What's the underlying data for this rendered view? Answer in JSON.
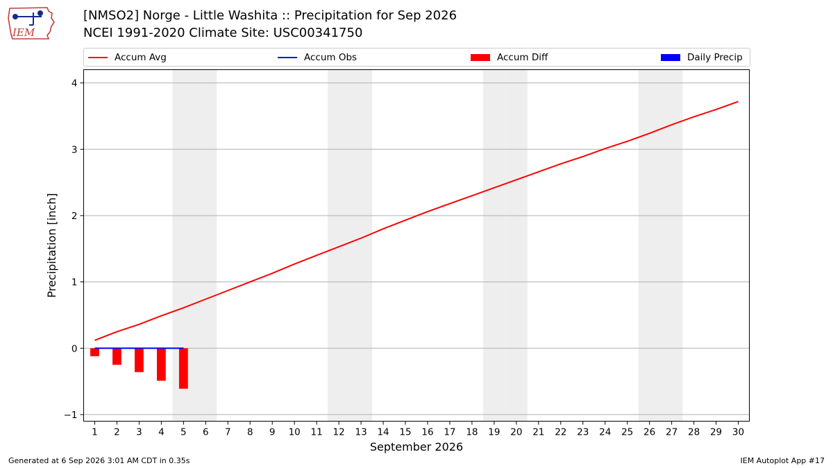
{
  "header": {
    "title": "[NMSO2] Norge - Little Washita :: Precipitation for Sep 2026",
    "subtitle": "NCEI 1991-2020 Climate Site: USC00341750",
    "logo_text": "IEM"
  },
  "legend": [
    {
      "label": "Accum Avg",
      "kind": "line",
      "color": "#ff0000"
    },
    {
      "label": "Accum Obs",
      "kind": "line",
      "color": "#0000ff"
    },
    {
      "label": "Accum Diff",
      "kind": "patch",
      "color": "#ff0000"
    },
    {
      "label": "Daily Precip",
      "kind": "patch",
      "color": "#0000ff"
    }
  ],
  "footer": {
    "left": "Generated at 6 Sep 2026 3:01 AM CDT in 0.35s",
    "right": "IEM Autoplot App #17"
  },
  "colors": {
    "avg": "#ff0000",
    "obs": "#0000ff",
    "diff": "#ff0000",
    "weekend_shade": "#eeeeee",
    "grid": "#b0b0b0"
  },
  "chart_data": {
    "type": "line",
    "xlabel": "September 2026",
    "ylabel": "Precipitation [inch]",
    "x_ticks": [
      1,
      2,
      3,
      4,
      5,
      6,
      7,
      8,
      9,
      10,
      11,
      12,
      13,
      14,
      15,
      16,
      17,
      18,
      19,
      20,
      21,
      22,
      23,
      24,
      25,
      26,
      27,
      28,
      29,
      30
    ],
    "xlim": [
      0.5,
      30.5
    ],
    "ylim": [
      -1.1,
      4.2
    ],
    "y_ticks": [
      -1,
      0,
      1,
      2,
      3,
      4
    ],
    "grid": "horizontal",
    "weekend_days": [
      5,
      6,
      12,
      13,
      19,
      20,
      26,
      27
    ],
    "series": [
      {
        "name": "Accum Avg",
        "type": "line",
        "x": [
          1,
          2,
          3,
          4,
          5,
          6,
          7,
          8,
          9,
          10,
          11,
          12,
          13,
          14,
          15,
          16,
          17,
          18,
          19,
          20,
          21,
          22,
          23,
          24,
          25,
          26,
          27,
          28,
          29,
          30
        ],
        "values": [
          0.12,
          0.25,
          0.36,
          0.49,
          0.61,
          0.74,
          0.87,
          1.0,
          1.13,
          1.27,
          1.4,
          1.53,
          1.66,
          1.8,
          1.93,
          2.06,
          2.18,
          2.3,
          2.42,
          2.54,
          2.66,
          2.78,
          2.89,
          3.01,
          3.12,
          3.24,
          3.37,
          3.49,
          3.6,
          3.72
        ]
      },
      {
        "name": "Accum Obs",
        "type": "line",
        "x": [
          1,
          2,
          3,
          4,
          5
        ],
        "values": [
          0.0,
          0.0,
          0.0,
          0.0,
          0.0
        ]
      },
      {
        "name": "Accum Diff",
        "type": "bar",
        "x": [
          1,
          2,
          3,
          4,
          5
        ],
        "values": [
          -0.12,
          -0.25,
          -0.36,
          -0.49,
          -0.61
        ]
      },
      {
        "name": "Daily Precip",
        "type": "bar",
        "x": [
          1,
          2,
          3,
          4,
          5
        ],
        "values": [
          0.0,
          0.0,
          0.0,
          0.0,
          0.0
        ]
      }
    ]
  }
}
